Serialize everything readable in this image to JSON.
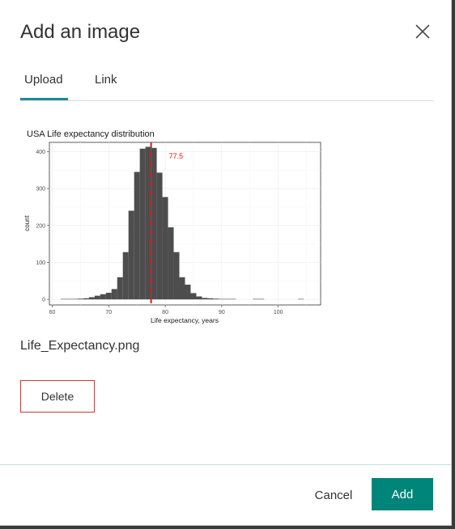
{
  "dialog": {
    "title": "Add an image",
    "close_icon": "close-icon"
  },
  "tabs": [
    {
      "label": "Upload",
      "active": true
    },
    {
      "label": "Link",
      "active": false
    }
  ],
  "colors": {
    "accent": "#1c8b94",
    "primary_button": "#00857a",
    "danger_border": "#c23b3b",
    "mean_line": "#e8151b",
    "bars": "#4d4d4d"
  },
  "upload": {
    "file_name": "Life_Expectancy.png",
    "delete_label": "Delete"
  },
  "footer": {
    "cancel_label": "Cancel",
    "add_label": "Add"
  },
  "chart_data": {
    "type": "bar",
    "title": "USA Life expectancy distribution",
    "xlabel": "Life expectancy, years",
    "ylabel": "count",
    "xlim": [
      59.5,
      107.5
    ],
    "ylim": [
      -15,
      425
    ],
    "xticks": [
      60,
      70,
      80,
      90,
      100
    ],
    "yticks": [
      0,
      100,
      200,
      300,
      400
    ],
    "grid": true,
    "bin_width": 1,
    "x": [
      62,
      63,
      64,
      65,
      66,
      67,
      68,
      69,
      70,
      71,
      72,
      73,
      74,
      75,
      76,
      77,
      78,
      79,
      80,
      81,
      82,
      83,
      84,
      85,
      86,
      87,
      88,
      89,
      90,
      91,
      92,
      96,
      97,
      104
    ],
    "values": [
      1,
      1,
      1,
      2,
      3,
      6,
      10,
      14,
      18,
      28,
      60,
      128,
      240,
      345,
      408,
      413,
      410,
      343,
      277,
      195,
      128,
      60,
      40,
      17,
      8,
      4,
      3,
      2,
      1,
      1,
      1,
      1,
      1,
      1
    ],
    "mean": 77.5,
    "mean_label": "77.5"
  }
}
